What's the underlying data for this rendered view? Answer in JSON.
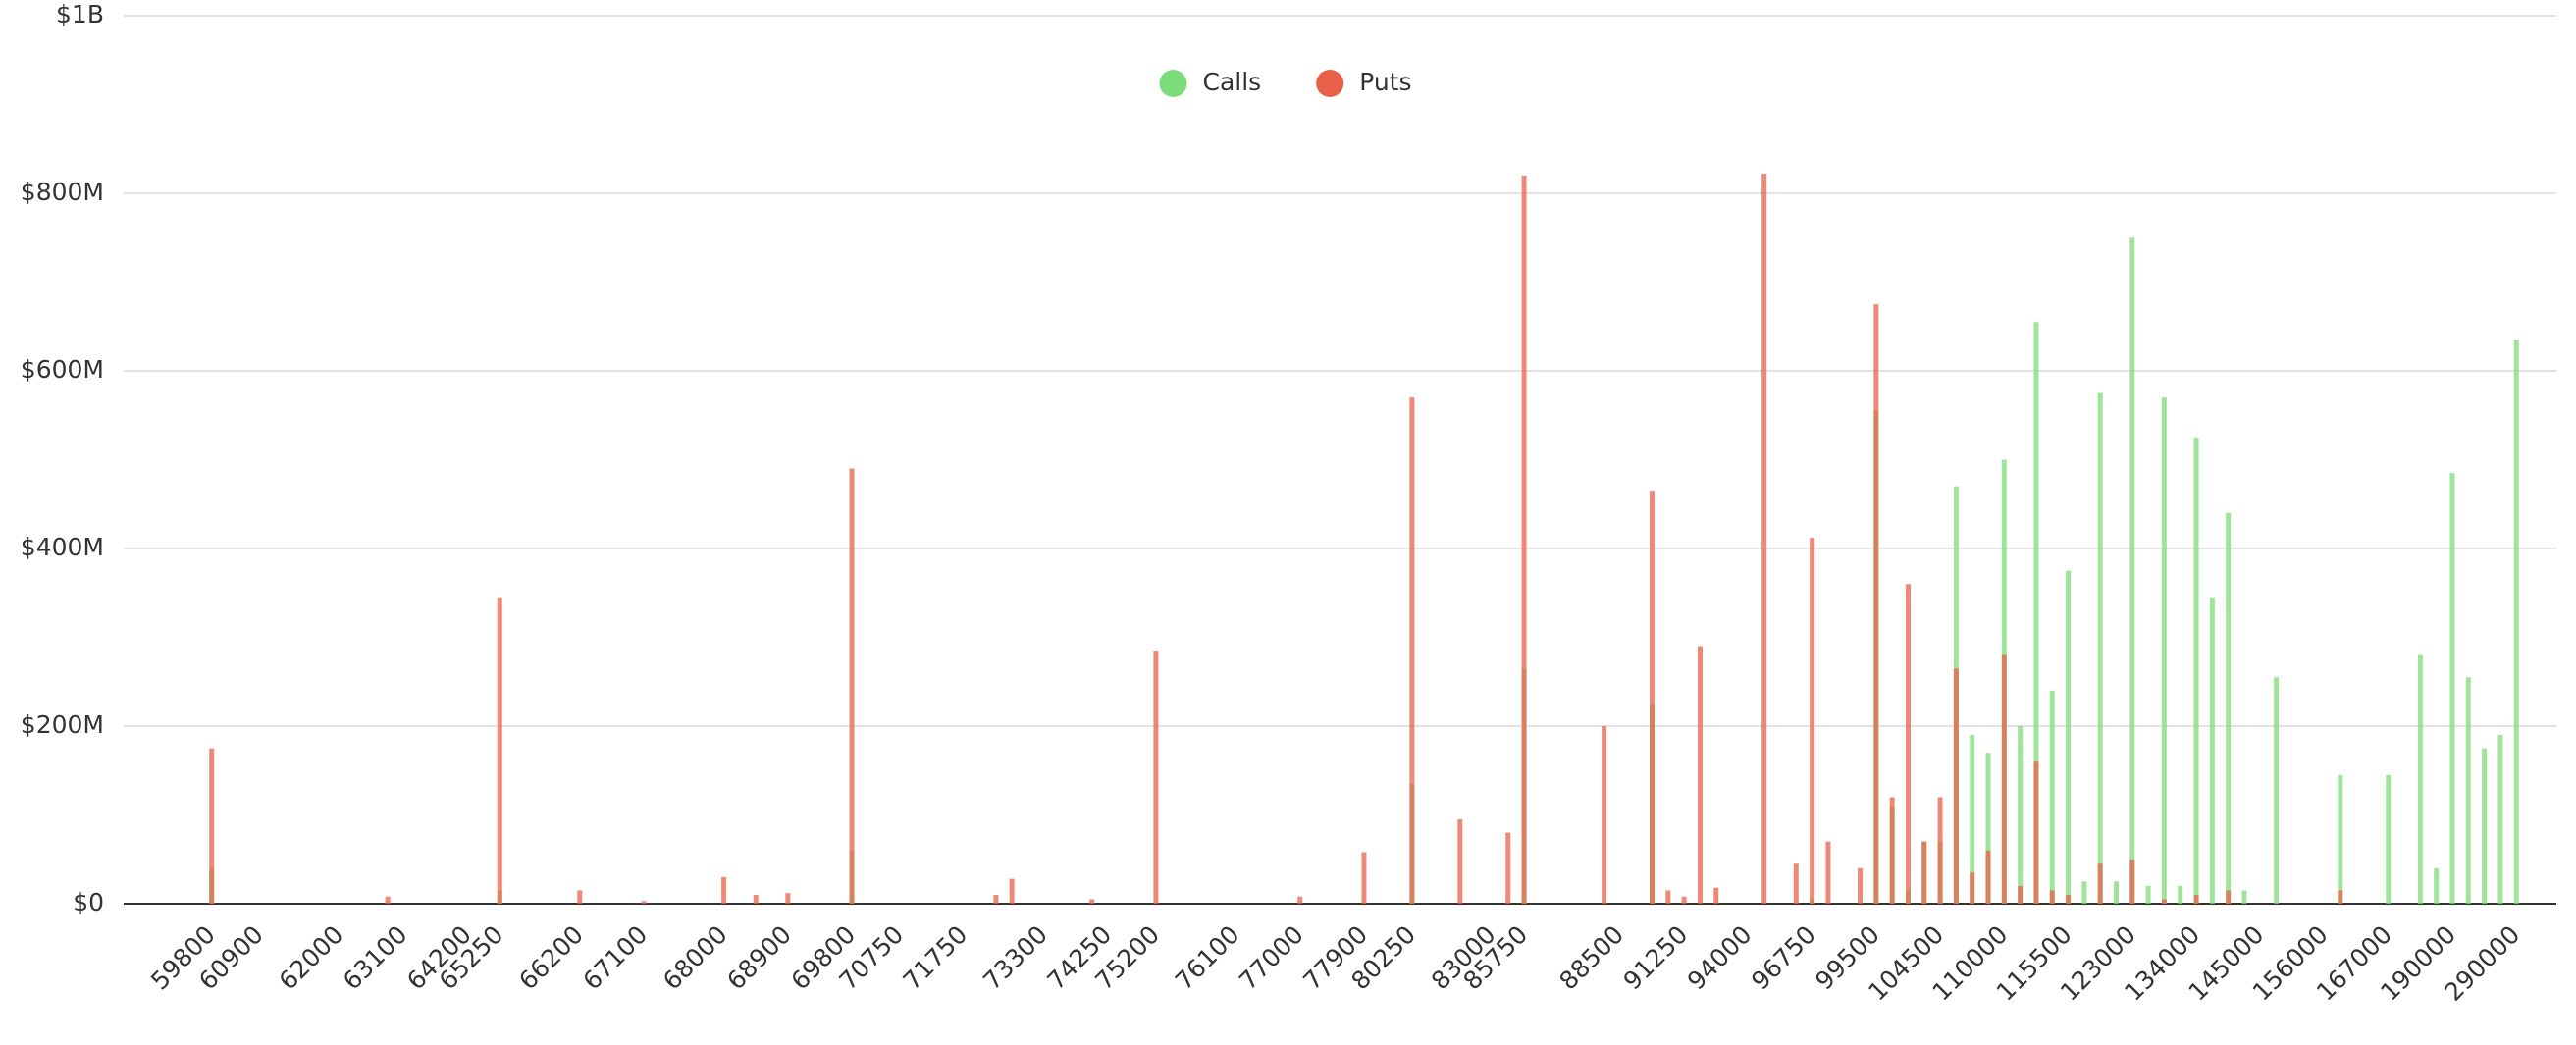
{
  "chart_data": {
    "type": "bar",
    "legend": "top",
    "grid": true,
    "categories": [
      null,
      null,
      null,
      null,
      null,
      "59800",
      null,
      null,
      "60900",
      null,
      null,
      null,
      null,
      "62000",
      null,
      null,
      null,
      "63100",
      null,
      null,
      null,
      "64200",
      null,
      "65250",
      null,
      null,
      null,
      null,
      "66200",
      null,
      null,
      null,
      "67100",
      null,
      null,
      null,
      null,
      "68000",
      null,
      null,
      null,
      "68900",
      null,
      null,
      null,
      "69800",
      null,
      null,
      "70750",
      null,
      null,
      null,
      "71750",
      null,
      null,
      null,
      null,
      "73300",
      null,
      null,
      null,
      "74250",
      null,
      null,
      "75200",
      null,
      null,
      null,
      null,
      "76100",
      null,
      null,
      null,
      "77000",
      null,
      null,
      null,
      "77900",
      null,
      null,
      "80250",
      null,
      null,
      null,
      null,
      "83000",
      null,
      "85750",
      null,
      null,
      null,
      null,
      null,
      "88500",
      null,
      null,
      null,
      "91250",
      null,
      null,
      null,
      "94000",
      null,
      null,
      null,
      "96750",
      null,
      null,
      null,
      "99500",
      null,
      null,
      null,
      "104500",
      null,
      null,
      null,
      "110000",
      null,
      null,
      null,
      "115500",
      null,
      null,
      null,
      "123000",
      null,
      null,
      null,
      "134000",
      null,
      null,
      null,
      "145000",
      null,
      null,
      null,
      "156000",
      null,
      null,
      null,
      "167000",
      null,
      null,
      null,
      "190000",
      null,
      null,
      null,
      "290000",
      null,
      null
    ],
    "series": [
      {
        "name": "Calls",
        "color": "#7ddc7a",
        "values": [
          0,
          0,
          0,
          0,
          0,
          40000000,
          0,
          0,
          0,
          0,
          0,
          0,
          0,
          0,
          0,
          0,
          0,
          0,
          0,
          0,
          0,
          0,
          0,
          15000000,
          0,
          0,
          0,
          0,
          0,
          0,
          0,
          0,
          0,
          0,
          0,
          0,
          0,
          0,
          0,
          0,
          0,
          0,
          0,
          0,
          0,
          60000000,
          0,
          0,
          0,
          0,
          0,
          0,
          0,
          0,
          0,
          0,
          0,
          0,
          0,
          0,
          0,
          0,
          0,
          0,
          0,
          0,
          0,
          0,
          0,
          0,
          0,
          0,
          0,
          0,
          0,
          0,
          0,
          0,
          0,
          0,
          135000000,
          0,
          0,
          0,
          0,
          0,
          0,
          265000000,
          0,
          0,
          0,
          0,
          0,
          0,
          0,
          225000000,
          0,
          0,
          0,
          0,
          0,
          0,
          0,
          0,
          0,
          5000000,
          0,
          0,
          0,
          555000000,
          110000000,
          15000000,
          70000000,
          70000000,
          470000000,
          190000000,
          170000000,
          500000000,
          200000000,
          655000000,
          240000000,
          375000000,
          25000000,
          575000000,
          25000000,
          750000000,
          20000000,
          570000000,
          20000000,
          525000000,
          345000000,
          440000000,
          15000000,
          0,
          255000000,
          0,
          0,
          0,
          145000000,
          0,
          0,
          145000000,
          0,
          280000000,
          40000000,
          485000000,
          255000000,
          175000000,
          190000000,
          635000000,
          0,
          0
        ]
      },
      {
        "name": "Puts",
        "color": "#e8604a",
        "values": [
          0,
          0,
          0,
          0,
          0,
          175000000,
          0,
          0,
          0,
          0,
          0,
          0,
          0,
          0,
          0,
          0,
          8000000,
          0,
          0,
          0,
          0,
          0,
          0,
          345000000,
          0,
          0,
          0,
          0,
          15000000,
          0,
          0,
          0,
          3000000,
          0,
          0,
          0,
          0,
          30000000,
          0,
          10000000,
          0,
          12000000,
          0,
          0,
          0,
          490000000,
          0,
          0,
          0,
          0,
          0,
          0,
          0,
          0,
          10000000,
          28000000,
          0,
          0,
          0,
          0,
          5000000,
          0,
          0,
          0,
          285000000,
          0,
          0,
          0,
          0,
          0,
          0,
          0,
          0,
          8000000,
          0,
          0,
          0,
          58000000,
          0,
          0,
          570000000,
          0,
          0,
          95000000,
          0,
          0,
          80000000,
          820000000,
          0,
          0,
          0,
          0,
          200000000,
          0,
          0,
          465000000,
          15000000,
          8000000,
          290000000,
          18000000,
          0,
          0,
          822000000,
          0,
          45000000,
          412000000,
          70000000,
          0,
          40000000,
          675000000,
          120000000,
          360000000,
          70000000,
          120000000,
          265000000,
          35000000,
          60000000,
          280000000,
          20000000,
          160000000,
          15000000,
          10000000,
          0,
          45000000,
          0,
          50000000,
          0,
          5000000,
          0,
          10000000,
          0,
          15000000,
          0,
          0,
          0,
          0,
          0,
          0,
          15000000,
          0,
          0,
          0,
          0,
          0,
          0,
          0,
          0,
          0,
          0,
          0,
          0,
          0
        ]
      }
    ],
    "ylim": [
      0,
      1000000000
    ],
    "yticks": [
      {
        "value": 0,
        "label": "$0"
      },
      {
        "value": 200000000,
        "label": "$200M"
      },
      {
        "value": 400000000,
        "label": "$400M"
      },
      {
        "value": 600000000,
        "label": "$600M"
      },
      {
        "value": 800000000,
        "label": "$800M"
      },
      {
        "value": 1000000000,
        "label": "$1B"
      }
    ]
  }
}
